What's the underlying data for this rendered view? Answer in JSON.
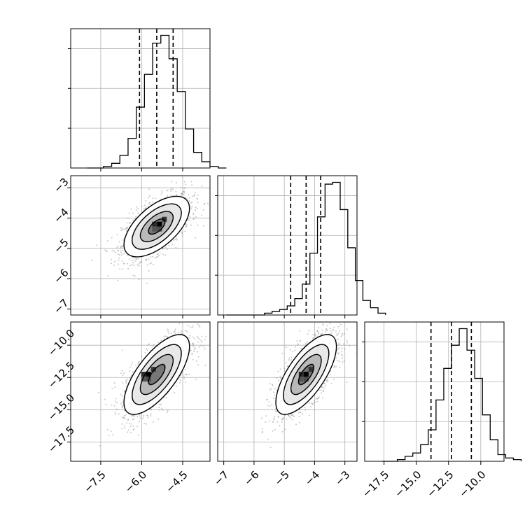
{
  "chart_data": {
    "type": "corner",
    "grid": true,
    "quantile_line_style": "dashed",
    "parameters": [
      {
        "range": [
          -8.6,
          -3.5
        ],
        "ticks": [
          -7.5,
          -6.0,
          -4.5
        ],
        "tick_labels": [
          "−7.5",
          "−6.0",
          "−4.5"
        ],
        "quantiles": [
          -6.08,
          -5.45,
          -4.85
        ],
        "hist_bin_width": 0.3,
        "hist_counts": [
          0,
          0,
          1,
          3,
          8,
          19,
          39,
          60,
          80,
          85,
          70,
          49,
          25,
          10,
          4,
          1,
          0
        ]
      },
      {
        "range": [
          -7.2,
          -2.6
        ],
        "ticks": [
          -7,
          -6,
          -5,
          -4,
          -3
        ],
        "tick_labels": [
          "−7",
          "−6",
          "−5",
          "−4",
          "−3"
        ],
        "quantiles": [
          -4.79,
          -4.28,
          -3.8
        ],
        "hist_bin_width": 0.25,
        "hist_counts": [
          0,
          0,
          0,
          0,
          0,
          1,
          2,
          3,
          5,
          9,
          17,
          34,
          54,
          72,
          73,
          58,
          37,
          19,
          8,
          4,
          1
        ]
      },
      {
        "range": [
          -19.0,
          -8.2
        ],
        "ticks": [
          -17.5,
          -15.0,
          -12.5,
          -10.0
        ],
        "tick_labels": [
          "−17.5",
          "−15.0",
          "−12.5",
          "−10.0"
        ],
        "quantiles": [
          -13.86,
          -12.27,
          -10.73
        ],
        "hist_bin_width": 0.6,
        "hist_counts": [
          0,
          0,
          1,
          3,
          5,
          10,
          19,
          37,
          56,
          70,
          80,
          67,
          50,
          28,
          13,
          4,
          2,
          1
        ]
      }
    ],
    "pairs": [
      {
        "x_param": 0,
        "y_param": 1,
        "mean": [
          -5.45,
          -4.28
        ],
        "sd": [
          0.6,
          0.5
        ],
        "correlation": 0.6,
        "peak": [
          -5.35,
          -4.2
        ]
      },
      {
        "x_param": 0,
        "y_param": 2,
        "mean": [
          -5.45,
          -12.27
        ],
        "sd": [
          0.6,
          1.55
        ],
        "correlation": 0.7,
        "peak": [
          -5.75,
          -12.25
        ]
      },
      {
        "x_param": 1,
        "y_param": 2,
        "mean": [
          -4.28,
          -12.27
        ],
        "sd": [
          0.5,
          1.55
        ],
        "correlation": 0.7,
        "peak": [
          -4.28,
          -12.25
        ]
      }
    ],
    "contour_levels_sigma": [
      0.5,
      1.0,
      1.5,
      2.0
    ]
  }
}
